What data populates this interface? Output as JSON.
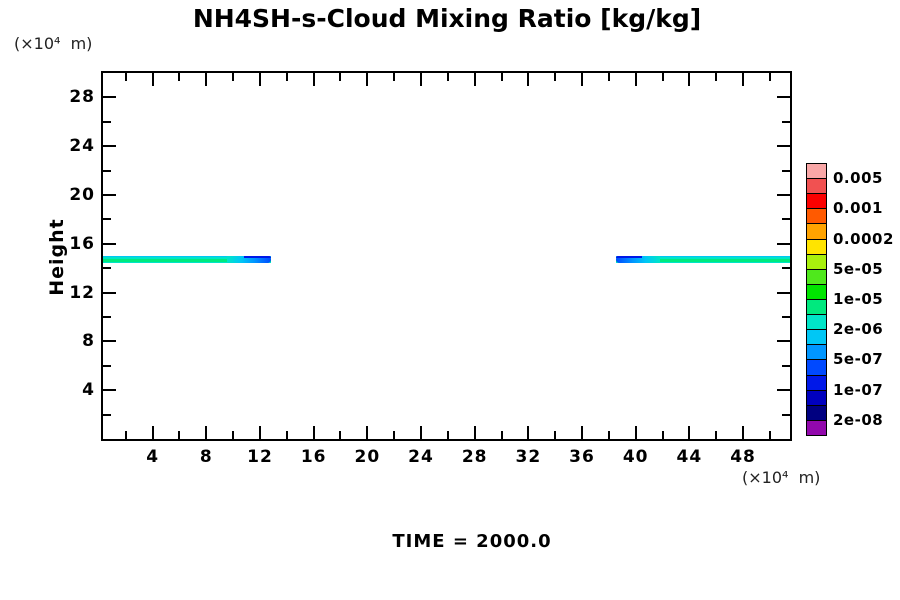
{
  "title": "NH4SH-s-Cloud Mixing Ratio [kg/kg]",
  "time_label": "TIME = 2000.0",
  "axes": {
    "x": {
      "unit": "(×10⁴  m)",
      "min": 0.3,
      "max": 51.5,
      "major_ticks": [
        4,
        8,
        12,
        16,
        20,
        24,
        28,
        32,
        36,
        40,
        44,
        48
      ],
      "minor_ticks": [
        2,
        6,
        10,
        14,
        18,
        22,
        26,
        30,
        34,
        38,
        42,
        46,
        50
      ]
    },
    "y": {
      "label": "Height",
      "unit": "(×10⁴  m)",
      "min": 0,
      "max": 30,
      "major_ticks": [
        4,
        8,
        12,
        16,
        20,
        24,
        28
      ],
      "minor_ticks": [
        2,
        6,
        10,
        14,
        18,
        22,
        26
      ]
    }
  },
  "colorbar": {
    "cells": [
      "#F9A7A7",
      "#F15151",
      "#FB0000",
      "#FF5A00",
      "#FFA300",
      "#FFE400",
      "#A9F00D",
      "#4FE81C",
      "#00E400",
      "#00E97E",
      "#00E5C8",
      "#00C7F5",
      "#0096FF",
      "#0049FF",
      "#0018E8",
      "#0000BE",
      "#000080",
      "#9208AC"
    ],
    "labels": [
      {
        "text": "0.005",
        "boundary": 1
      },
      {
        "text": "0.001",
        "boundary": 3
      },
      {
        "text": "0.0002",
        "boundary": 5
      },
      {
        "text": "5e-05",
        "boundary": 7
      },
      {
        "text": "1e-05",
        "boundary": 9
      },
      {
        "text": "2e-06",
        "boundary": 11
      },
      {
        "text": "5e-07",
        "boundary": 13
      },
      {
        "text": "1e-07",
        "boundary": 15
      },
      {
        "text": "2e-08",
        "boundary": 17
      }
    ]
  },
  "colors": {
    "band_edge_cyan": "#00C7F5",
    "band_shell_turquoise": "#00E5C8",
    "band_core_green": "#00E97E",
    "tip_blue_light": "#0096FF",
    "tip_blue_deep": "#0049FF",
    "tip_edge_dark": "#0018E8",
    "frame": "#000000"
  },
  "chart_data": {
    "type": "heatmap",
    "title": "NH4SH-s-Cloud Mixing Ratio [kg/kg]",
    "xlabel": "(×10⁴ m)",
    "ylabel": "Height",
    "ylabel_unit": "(×10⁴ m)",
    "time": 2000.0,
    "x_range": [
      0.3,
      51.5
    ],
    "y_range": [
      0,
      30
    ],
    "contour_levels": [
      2e-08,
      5e-08,
      1e-07,
      2e-07,
      5e-07,
      1e-06,
      2e-06,
      5e-06,
      1e-05,
      2e-05,
      5e-05,
      0.0001,
      0.0002,
      0.0005,
      0.001,
      0.002,
      0.005
    ],
    "features": [
      {
        "name": "left-cloud-band",
        "x": [
          0.3,
          12.8
        ],
        "height_top": 15.0,
        "height_bottom": 14.43,
        "tip": "right",
        "core_value": "5e-06 to 1e-05 kg/kg",
        "shell_value": "2e-06 to 5e-06 kg/kg",
        "tip_value": "1e-07 to 1e-06 kg/kg"
      },
      {
        "name": "right-cloud-band",
        "x": [
          38.5,
          51.5
        ],
        "height_top": 15.0,
        "height_bottom": 14.43,
        "tip": "left",
        "core_value": "5e-06 to 1e-05 kg/kg",
        "shell_value": "2e-06 to 5e-06 kg/kg",
        "tip_value": "1e-07 to 1e-06 kg/kg"
      }
    ],
    "legend_position": "right",
    "grid": false
  }
}
